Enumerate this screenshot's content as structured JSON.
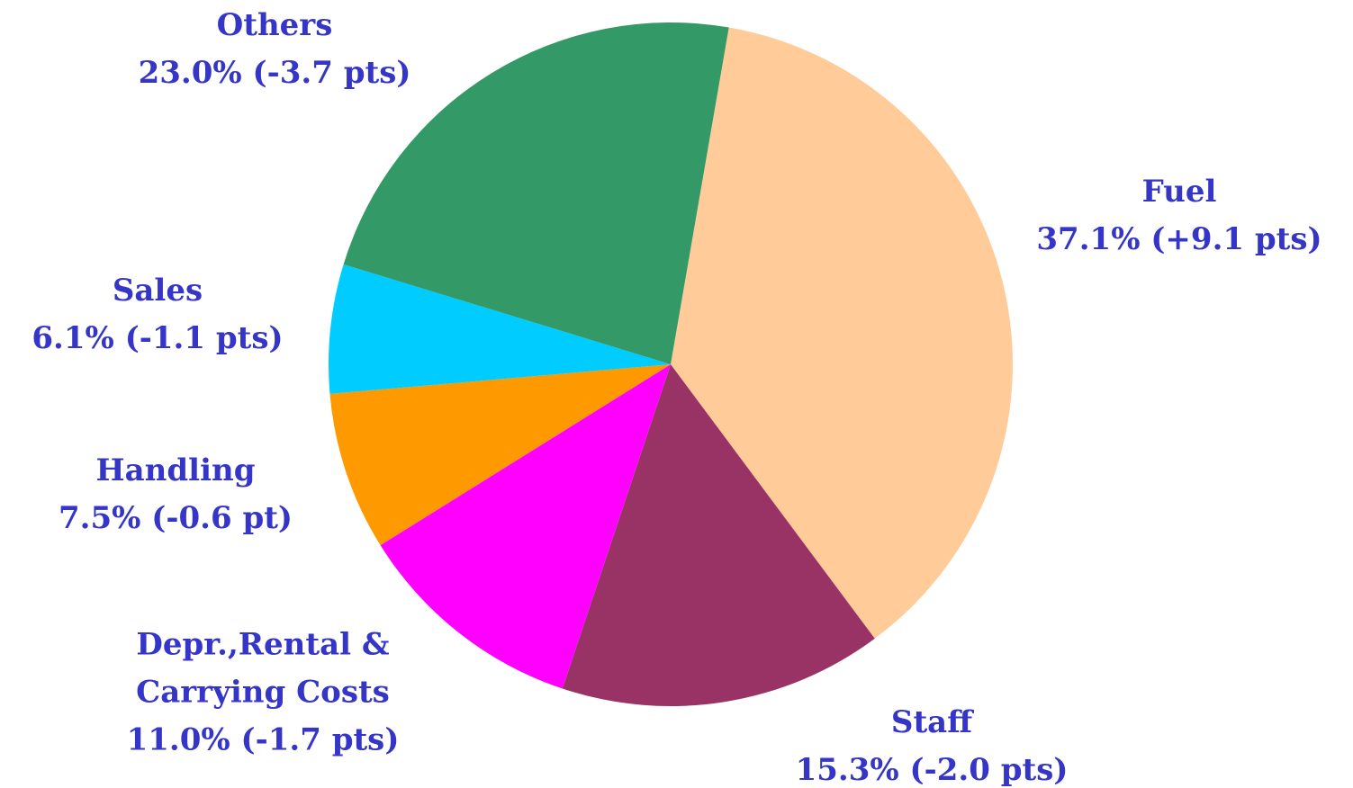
{
  "chart_data": {
    "type": "pie",
    "categories": [
      "Fuel",
      "Staff",
      "Depr.,Rental & Carrying Costs",
      "Handling",
      "Sales",
      "Others"
    ],
    "values": [
      37.1,
      15.3,
      11.0,
      7.5,
      6.1,
      23.0
    ],
    "value_labels": [
      "37.1% (+9.1 pts)",
      "15.3% (-2.0 pts)",
      "11.0% (-1.7 pts)",
      "7.5% (-0.6 pt)",
      "6.1% (-1.1 pts)",
      "23.0% (-3.7 pts)"
    ],
    "colors": [
      "#ffcc99",
      "#993366",
      "#ff00ff",
      "#ff9900",
      "#00ccff",
      "#339966"
    ]
  }
}
